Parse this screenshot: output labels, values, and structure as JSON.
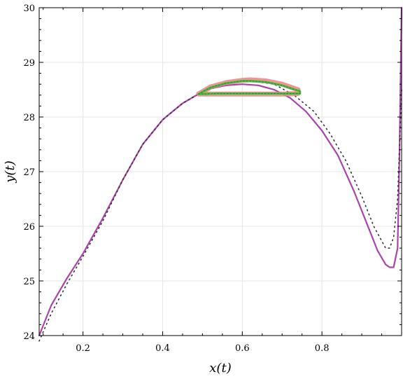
{
  "chart_data": {
    "type": "line",
    "xlabel": "x(t)",
    "ylabel": "y(t)",
    "xlim": [
      0.09,
      1.0
    ],
    "ylim": [
      24,
      30
    ],
    "x_ticks": [
      0.2,
      0.4,
      0.6,
      0.8
    ],
    "x_tick_labels": [
      "0.2",
      "0.4",
      "0.6",
      "0.8"
    ],
    "y_ticks": [
      24,
      25,
      26,
      27,
      28,
      29,
      30
    ],
    "y_tick_labels": [
      "24",
      "25",
      "26",
      "27",
      "28",
      "29",
      "30"
    ],
    "grid": true,
    "colors": {
      "main_curve": "#aa44aa",
      "dotted_curve": "#333333",
      "loop_outer": "#f08080",
      "loop_inner": "#33cc33"
    },
    "series": [
      {
        "style": "solid",
        "color": "#aa44aa",
        "x": [
          0.09,
          0.12,
          0.16,
          0.2,
          0.25,
          0.3,
          0.35,
          0.4,
          0.45,
          0.49,
          0.52,
          0.56,
          0.6,
          0.64,
          0.68,
          0.72,
          0.76,
          0.8,
          0.84,
          0.88,
          0.91,
          0.94,
          0.96,
          0.97,
          0.98,
          0.99,
          0.995,
          1.0
        ],
        "y": [
          24.0,
          24.55,
          25.05,
          25.5,
          26.15,
          26.85,
          27.5,
          27.95,
          28.25,
          28.42,
          28.52,
          28.58,
          28.6,
          28.58,
          28.5,
          28.35,
          28.1,
          27.75,
          27.3,
          26.65,
          26.1,
          25.55,
          25.3,
          25.25,
          25.25,
          25.6,
          27.5,
          30.0
        ]
      },
      {
        "style": "dotted",
        "color": "#333333",
        "x": [
          0.09,
          0.12,
          0.16,
          0.2,
          0.25,
          0.3,
          0.35,
          0.4,
          0.45,
          0.49,
          0.56,
          0.62,
          0.68,
          0.73,
          0.78,
          0.82,
          0.86,
          0.9,
          0.93,
          0.96,
          0.97,
          0.98,
          0.99,
          1.0
        ],
        "y": [
          23.9,
          24.4,
          24.95,
          25.45,
          26.1,
          26.85,
          27.5,
          27.95,
          28.25,
          28.42,
          28.62,
          28.66,
          28.6,
          28.4,
          28.1,
          27.7,
          27.2,
          26.55,
          26.0,
          25.6,
          25.6,
          25.8,
          26.5,
          28.5
        ]
      },
      {
        "style": "loop-outer",
        "color": "#f08080",
        "x": [
          0.49,
          0.52,
          0.56,
          0.6,
          0.62,
          0.66,
          0.7,
          0.74,
          0.74,
          0.7,
          0.66,
          0.62,
          0.58,
          0.54,
          0.49
        ],
        "y": [
          28.42,
          28.55,
          28.63,
          28.67,
          28.68,
          28.66,
          28.6,
          28.5,
          28.43,
          28.42,
          28.42,
          28.42,
          28.42,
          28.42,
          28.42
        ]
      },
      {
        "style": "loop-inner",
        "color": "#33cc33",
        "x": [
          0.49,
          0.52,
          0.56,
          0.6,
          0.62,
          0.66,
          0.7,
          0.745,
          0.745,
          0.7,
          0.66,
          0.62,
          0.58,
          0.54,
          0.49
        ],
        "y": [
          28.42,
          28.54,
          28.62,
          28.66,
          28.66,
          28.64,
          28.58,
          28.47,
          28.43,
          28.43,
          28.43,
          28.43,
          28.43,
          28.43,
          28.42
        ]
      }
    ]
  }
}
